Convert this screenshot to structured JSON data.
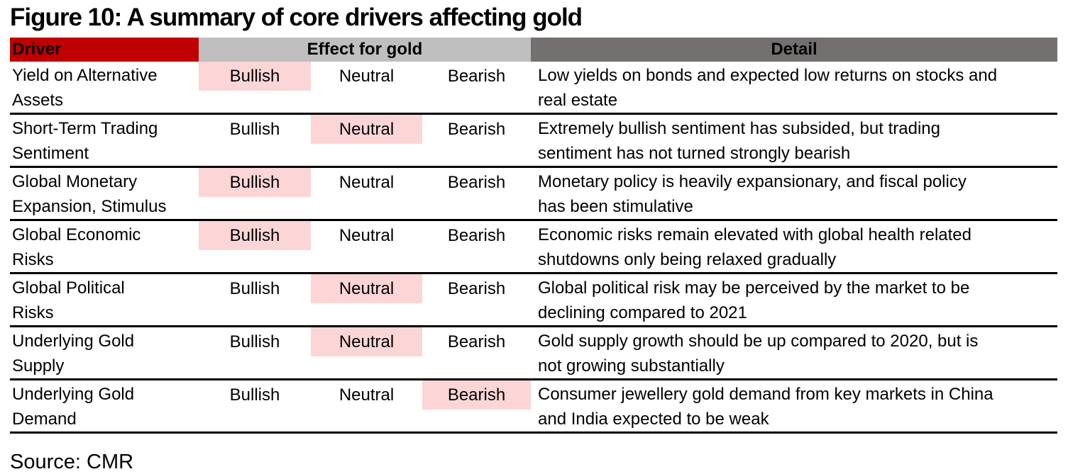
{
  "title": "Figure 10: A summary of core drivers affecting gold",
  "source": "Source: CMR",
  "colors": {
    "driver_header_bg": "#c00000",
    "effect_header_bg": "#bfbfbf",
    "detail_header_bg": "#757070",
    "highlight_bg": "#fcd5d6"
  },
  "table": {
    "headers": {
      "driver": "Driver",
      "effect": "Effect for gold",
      "detail": "Detail"
    },
    "effect_options": [
      "Bullish",
      "Neutral",
      "Bearish"
    ],
    "rows": [
      {
        "driver": "Yield on Alternative\nAssets",
        "effect": "Bullish",
        "detail": "Low yields on bonds and expected low returns on stocks and\nreal estate"
      },
      {
        "driver": "Short-Term Trading\nSentiment",
        "effect": "Neutral",
        "detail": "Extremely bullish sentiment has subsided, but trading\nsentiment has not turned strongly bearish"
      },
      {
        "driver": "Global Monetary\nExpansion, Stimulus",
        "effect": "Bullish",
        "detail": "Monetary policy is heavily expansionary, and  fiscal policy\nhas been stimulative"
      },
      {
        "driver": "Global Economic\nRisks",
        "effect": "Bullish",
        "detail": "Economic risks remain elevated with global health related\nshutdowns only being relaxed gradually"
      },
      {
        "driver": "Global Political\nRisks",
        "effect": "Neutral",
        "detail": "Global political risk may be perceived by the market to be\ndeclining compared to 2021"
      },
      {
        "driver": "Underlying Gold\nSupply",
        "effect": "Neutral",
        "detail": "Gold supply growth should be up compared to 2020, but is\nnot growing substantially"
      },
      {
        "driver": "Underlying Gold\nDemand",
        "effect": "Bearish",
        "detail": "Consumer jewellery gold demand from key markets in China\nand India expected to be weak"
      }
    ]
  }
}
